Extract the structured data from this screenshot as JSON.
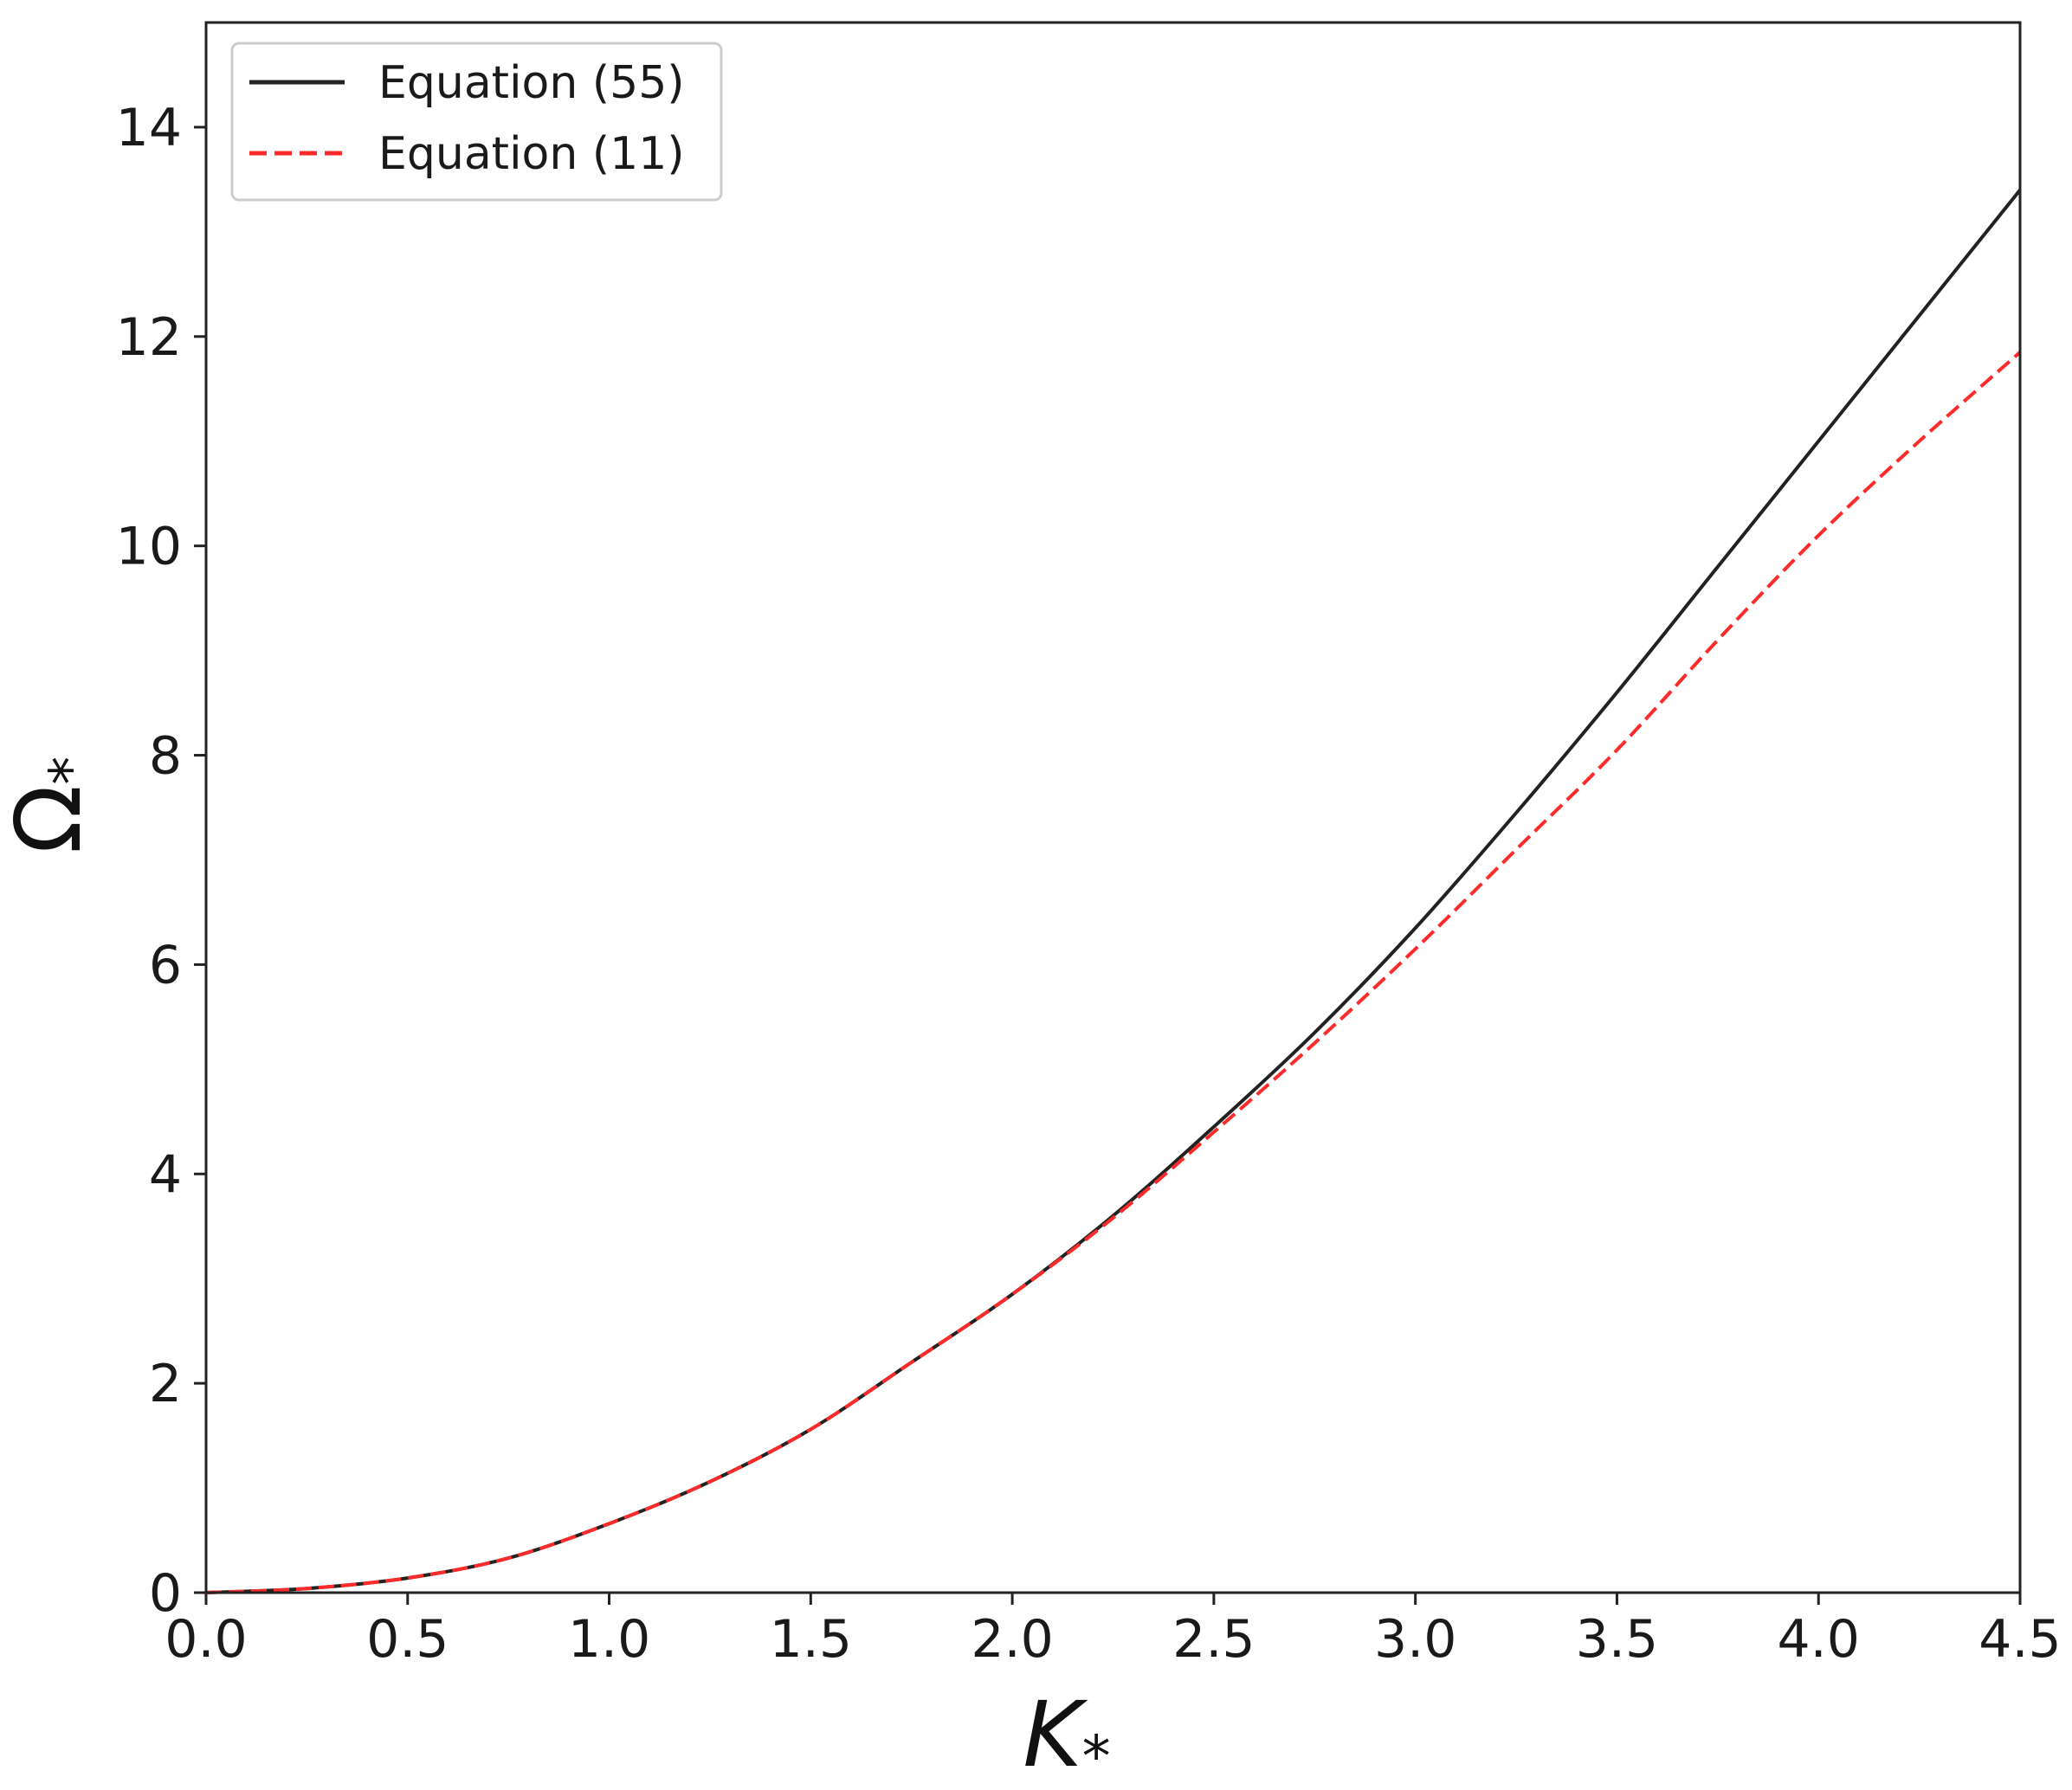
{
  "chart_data": {
    "type": "line",
    "title": "",
    "xlabel": "K",
    "xlabel_sub": "*",
    "ylabel": "Ω",
    "ylabel_sub": "*",
    "xlim": [
      0,
      4.5
    ],
    "ylim": [
      0,
      15
    ],
    "xticks": [
      0.0,
      0.5,
      1.0,
      1.5,
      2.0,
      2.5,
      3.0,
      3.5,
      4.0,
      4.5
    ],
    "xtick_labels": [
      "0.0",
      "0.5",
      "1.0",
      "1.5",
      "2.0",
      "2.5",
      "3.0",
      "3.5",
      "4.0",
      "4.5"
    ],
    "yticks": [
      0,
      2,
      4,
      6,
      8,
      10,
      12,
      14
    ],
    "ytick_labels": [
      "0",
      "2",
      "4",
      "6",
      "8",
      "10",
      "12",
      "14"
    ],
    "grid": false,
    "legend_position": "top-left",
    "series": [
      {
        "name": "Equation (55)",
        "color": "#222222",
        "style": "solid",
        "x": [
          0.0,
          0.25,
          0.5,
          0.75,
          1.0,
          1.25,
          1.5,
          1.75,
          2.0,
          2.25,
          2.5,
          2.75,
          3.0,
          3.25,
          3.5,
          3.75,
          4.0,
          4.25,
          4.5
        ],
        "y": [
          0.0,
          0.04,
          0.14,
          0.33,
          0.66,
          1.06,
          1.56,
          2.2,
          2.85,
          3.6,
          4.45,
          5.35,
          6.35,
          7.45,
          8.6,
          9.8,
          11.0,
          12.2,
          13.4
        ]
      },
      {
        "name": "Equation (11)",
        "color": "#ff2a2a",
        "style": "dashed",
        "x": [
          0.0,
          0.25,
          0.5,
          0.75,
          1.0,
          1.25,
          1.5,
          1.75,
          2.0,
          2.25,
          2.5,
          2.75,
          3.0,
          3.25,
          3.5,
          3.75,
          4.0,
          4.25,
          4.5
        ],
        "y": [
          0.0,
          0.04,
          0.14,
          0.33,
          0.66,
          1.06,
          1.56,
          2.2,
          2.85,
          3.58,
          4.4,
          5.25,
          6.15,
          7.1,
          8.05,
          9.1,
          10.1,
          11.0,
          11.85
        ]
      }
    ]
  }
}
